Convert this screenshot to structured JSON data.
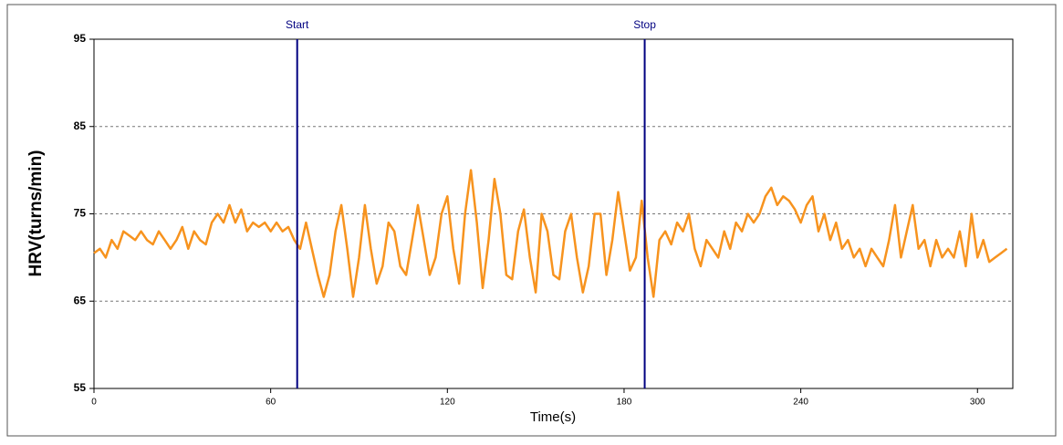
{
  "chart_data": {
    "type": "line",
    "ylabel": "HRV(turns/min)",
    "xlabel": "Time(s)",
    "xlim": [
      0,
      312
    ],
    "xticks": [
      0,
      60,
      120,
      180,
      240,
      300
    ],
    "ylim": [
      55,
      95
    ],
    "yticks": [
      55,
      65,
      75,
      85,
      95
    ],
    "grid": true,
    "color": "#f7931e",
    "markers": [
      {
        "label": "Start",
        "x": 69,
        "color": "#000080"
      },
      {
        "label": "Stop",
        "x": 187,
        "color": "#000080"
      }
    ],
    "x": [
      0,
      2,
      4,
      6,
      8,
      10,
      12,
      14,
      16,
      18,
      20,
      22,
      24,
      26,
      28,
      30,
      32,
      34,
      36,
      38,
      40,
      42,
      44,
      46,
      48,
      50,
      52,
      54,
      56,
      58,
      60,
      62,
      64,
      66,
      68,
      70,
      72,
      74,
      76,
      78,
      80,
      82,
      84,
      86,
      88,
      90,
      92,
      94,
      96,
      98,
      100,
      102,
      104,
      106,
      108,
      110,
      112,
      114,
      116,
      118,
      120,
      122,
      124,
      126,
      128,
      130,
      132,
      134,
      136,
      138,
      140,
      142,
      144,
      146,
      148,
      150,
      152,
      154,
      156,
      158,
      160,
      162,
      164,
      166,
      168,
      170,
      172,
      174,
      176,
      178,
      180,
      182,
      184,
      186,
      188,
      190,
      192,
      194,
      196,
      198,
      200,
      202,
      204,
      206,
      208,
      210,
      212,
      214,
      216,
      218,
      220,
      222,
      224,
      226,
      228,
      230,
      232,
      234,
      236,
      238,
      240,
      242,
      244,
      246,
      248,
      250,
      252,
      254,
      256,
      258,
      260,
      262,
      264,
      266,
      268,
      270,
      272,
      274,
      276,
      278,
      280,
      282,
      284,
      286,
      288,
      290,
      292,
      294,
      296,
      298,
      300,
      302,
      304,
      306,
      308,
      310
    ],
    "values": [
      70.5,
      71,
      70,
      72,
      71,
      73,
      72.5,
      72,
      73,
      72,
      71.5,
      73,
      72,
      71,
      72,
      73.5,
      71,
      73,
      72,
      71.5,
      74,
      75,
      74,
      76,
      74,
      75.5,
      73,
      74,
      73.5,
      74,
      73,
      74,
      73,
      73.5,
      72,
      71,
      74,
      71,
      68,
      65.5,
      68,
      73,
      76,
      71,
      65.5,
      70,
      76,
      71,
      67,
      69,
      74,
      73,
      69,
      68,
      72,
      76,
      72,
      68,
      70,
      75,
      77,
      71,
      67,
      75,
      80,
      74,
      66.5,
      72,
      79,
      75,
      68,
      67.5,
      73,
      75.5,
      70,
      66,
      75,
      73,
      68,
      67.5,
      73,
      75,
      70,
      66,
      69,
      75,
      75,
      68,
      72,
      77.5,
      73,
      68.5,
      70,
      76.5,
      70,
      65.5,
      72,
      73,
      71.5,
      74,
      73,
      75,
      71,
      69,
      72,
      71,
      70,
      73,
      71,
      74,
      73,
      75,
      74,
      75,
      77,
      78,
      76,
      77,
      76.5,
      75.5,
      74,
      76,
      77,
      73,
      75,
      72,
      74,
      71,
      72,
      70,
      71,
      69,
      71,
      70,
      69,
      72,
      76,
      70,
      73,
      76,
      71,
      72,
      69,
      72,
      70,
      71,
      70,
      73,
      69,
      75,
      70,
      72,
      69.5,
      70,
      70.5,
      71
    ]
  }
}
